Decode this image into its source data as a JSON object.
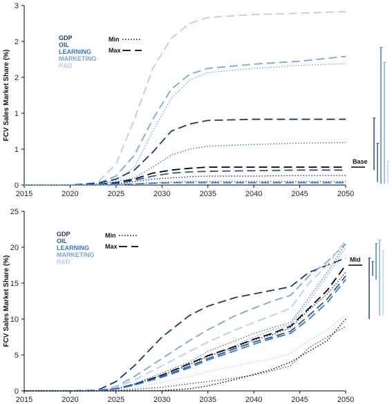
{
  "colors": {
    "GDP": "#1f3864",
    "OIL": "#2e5597",
    "LEARNING": "#3c78c2",
    "MARKETING": "#7aa6d6",
    "R&D": "#b6cfe9",
    "Base": "#000000",
    "axis": "#000000"
  },
  "chart_data": [
    {
      "type": "line",
      "ylabel": "FCV Sales Market Share (%)",
      "xlim": [
        2015,
        2050
      ],
      "ylim": [
        0,
        3
      ],
      "x_ticks": [
        "2015",
        "2020",
        "2025",
        "2030",
        "2035",
        "2040",
        "2045",
        "2050"
      ],
      "y_ticks": [
        "0",
        "1",
        "1",
        "2",
        "2",
        "3"
      ],
      "x": [
        2015,
        2020,
        2023,
        2025,
        2027,
        2029,
        2031,
        2033,
        2035,
        2040,
        2045,
        2050
      ],
      "legend": {
        "drivers": [
          "GDP",
          "OIL",
          "LEARNING",
          "MARKETING",
          "R&D"
        ],
        "styles": [
          "Min",
          "Max"
        ]
      },
      "reference_label": "Base",
      "series": [
        {
          "name": "R&D",
          "style": "Max",
          "values": [
            0,
            0,
            0.05,
            0.35,
            1.1,
            1.95,
            2.45,
            2.7,
            2.8,
            2.85,
            2.87,
            2.9
          ]
        },
        {
          "name": "MARKETING",
          "style": "Max",
          "values": [
            0,
            0,
            0.03,
            0.15,
            0.5,
            1.1,
            1.6,
            1.85,
            1.95,
            2.02,
            2.07,
            2.15
          ]
        },
        {
          "name": "MARKETING",
          "style": "Min",
          "values": [
            0,
            0,
            0.02,
            0.08,
            0.3,
            0.9,
            1.45,
            1.75,
            1.88,
            1.95,
            2.0,
            2.03
          ]
        },
        {
          "name": "GDP",
          "style": "Max",
          "values": [
            0,
            0,
            0.03,
            0.1,
            0.25,
            0.55,
            0.9,
            1.02,
            1.08,
            1.1,
            1.1,
            1.1
          ]
        },
        {
          "name": "LEARNING",
          "style": "Min",
          "values": [
            0,
            0,
            0.02,
            0.06,
            0.12,
            0.3,
            0.5,
            0.6,
            0.65,
            0.68,
            0.7,
            0.71
          ]
        },
        {
          "name": "Base",
          "style": "Max",
          "values": [
            0,
            0,
            0.01,
            0.04,
            0.1,
            0.2,
            0.25,
            0.28,
            0.3,
            0.3,
            0.3,
            0.3
          ]
        },
        {
          "name": "OIL",
          "style": "Max",
          "values": [
            0,
            0,
            0.01,
            0.03,
            0.08,
            0.15,
            0.2,
            0.22,
            0.23,
            0.24,
            0.25,
            0.25
          ]
        },
        {
          "name": "GDP",
          "style": "Min",
          "values": [
            0,
            0,
            0.01,
            0.02,
            0.06,
            0.1,
            0.12,
            0.14,
            0.15,
            0.15,
            0.16,
            0.16
          ]
        },
        {
          "name": "OIL",
          "style": "Min",
          "values": [
            0,
            0,
            0.0,
            0.01,
            0.02,
            0.04,
            0.05,
            0.06,
            0.06,
            0.06,
            0.06,
            0.06
          ]
        },
        {
          "name": "LEARNING",
          "style": "Max",
          "values": [
            0,
            0,
            0.0,
            0.01,
            0.02,
            0.03,
            0.04,
            0.04,
            0.04,
            0.04,
            0.04,
            0.04
          ]
        },
        {
          "name": "R&D",
          "style": "Min",
          "values": [
            0,
            0,
            0.0,
            0.0,
            0.01,
            0.01,
            0.01,
            0.02,
            0.02,
            0.02,
            0.02,
            0.02
          ]
        }
      ],
      "range_bars": [
        {
          "color": "GDP",
          "low": 0.25,
          "high": 1.12
        },
        {
          "color": "OIL",
          "low": 0.05,
          "high": 0.7
        },
        {
          "color": "LEARNING",
          "low": 0.02,
          "high": 2.3
        },
        {
          "color": "MARKETING",
          "low": 0.02,
          "high": 2.05
        },
        {
          "color": "R&D",
          "low": 0.02,
          "high": 0.4
        }
      ]
    },
    {
      "type": "line",
      "ylabel": "FCV Sales Market Share (%)",
      "xlim": [
        2015,
        2050
      ],
      "ylim": [
        0,
        25
      ],
      "x_ticks": [
        "2015",
        "2020",
        "2025",
        "2030",
        "2035",
        "2040",
        "2045",
        "2050"
      ],
      "y_ticks": [
        "0",
        "5",
        "10",
        "15",
        "20",
        "25"
      ],
      "x": [
        2015,
        2020,
        2023,
        2025,
        2027,
        2030,
        2033,
        2035,
        2038,
        2040,
        2042,
        2044,
        2046,
        2048,
        2050
      ],
      "legend": {
        "drivers": [
          "GDP",
          "OIL",
          "LEARNING",
          "MARKETING",
          "R&D"
        ],
        "styles": [
          "Min",
          "Max"
        ]
      },
      "reference_label": "Mid",
      "series": [
        {
          "name": "GDP",
          "style": "Max",
          "values": [
            0,
            0,
            0.1,
            1.3,
            3.5,
            7.5,
            10.5,
            11.8,
            13.0,
            13.5,
            14.0,
            14.5,
            16.5,
            17.5,
            18.5
          ]
        },
        {
          "name": "MARKETING",
          "style": "Max",
          "values": [
            0,
            0,
            0.05,
            0.6,
            2.0,
            4.5,
            7.0,
            8.5,
            10.5,
            11.5,
            12.5,
            13.3,
            16.0,
            18.0,
            20.5
          ]
        },
        {
          "name": "R&D",
          "style": "Max",
          "values": [
            0,
            0,
            0.05,
            0.5,
            1.5,
            3.5,
            5.5,
            6.8,
            8.5,
            9.5,
            10.5,
            11.5,
            15.0,
            17.5,
            21.0
          ]
        },
        {
          "name": "LEARNING",
          "style": "Min",
          "values": [
            0,
            0,
            0.03,
            0.3,
            1.0,
            2.5,
            4.0,
            5.5,
            7.0,
            8.0,
            8.8,
            9.5,
            13.0,
            16.5,
            20.5
          ]
        },
        {
          "name": "MARKETING",
          "style": "Min",
          "values": [
            0,
            0,
            0.03,
            0.25,
            0.8,
            2.2,
            3.5,
            4.8,
            6.3,
            7.5,
            8.5,
            9.2,
            12.5,
            16.0,
            20.0
          ]
        },
        {
          "name": "Base",
          "style": "Max",
          "values": [
            0,
            0,
            0.03,
            0.3,
            0.9,
            2.2,
            3.8,
            4.9,
            6.2,
            7.2,
            8.0,
            9.0,
            11.5,
            14.0,
            17.5
          ]
        },
        {
          "name": "GDP",
          "style": "Min",
          "values": [
            0,
            0,
            0.03,
            0.3,
            0.9,
            2.2,
            3.7,
            4.8,
            6.1,
            7.1,
            7.8,
            8.8,
            11.3,
            13.5,
            16.5
          ]
        },
        {
          "name": "OIL",
          "style": "Max",
          "values": [
            0,
            0,
            0.03,
            0.28,
            0.85,
            2.0,
            3.4,
            4.5,
            5.9,
            6.8,
            7.5,
            8.3,
            10.5,
            12.8,
            16.0
          ]
        },
        {
          "name": "LEARNING",
          "style": "Max",
          "values": [
            0,
            0,
            0.02,
            0.25,
            0.8,
            1.9,
            3.2,
            4.3,
            5.6,
            6.5,
            7.3,
            8.0,
            10.0,
            12.3,
            15.5
          ]
        },
        {
          "name": "R&D",
          "style": "Min",
          "values": [
            0,
            0,
            0.02,
            0.1,
            0.4,
            1.2,
            2.0,
            2.7,
            3.5,
            4.0,
            4.5,
            5.2,
            7.0,
            8.5,
            10.5
          ]
        },
        {
          "name": "OIL",
          "style": "Min",
          "values": [
            0,
            0,
            0.0,
            0.05,
            0.2,
            0.5,
            1.0,
            1.3,
            1.8,
            2.2,
            2.8,
            3.5,
            6.0,
            7.5,
            9.0
          ]
        },
        {
          "name": "Base",
          "style": "Min",
          "values": [
            0,
            0,
            0.0,
            0.0,
            0.0,
            0.05,
            0.3,
            0.7,
            1.6,
            2.3,
            3.0,
            4.0,
            5.5,
            7.0,
            10.0
          ]
        }
      ],
      "range_bars": [
        {
          "color": "GDP",
          "low": 10.0,
          "high": 18.5
        },
        {
          "color": "OIL",
          "low": 16.0,
          "high": 18.0
        },
        {
          "color": "LEARNING",
          "low": 15.5,
          "high": 20.5
        },
        {
          "color": "MARKETING",
          "low": 10.5,
          "high": 21.0
        },
        {
          "color": "R&D",
          "low": 10.5,
          "high": 19.5
        }
      ]
    }
  ]
}
